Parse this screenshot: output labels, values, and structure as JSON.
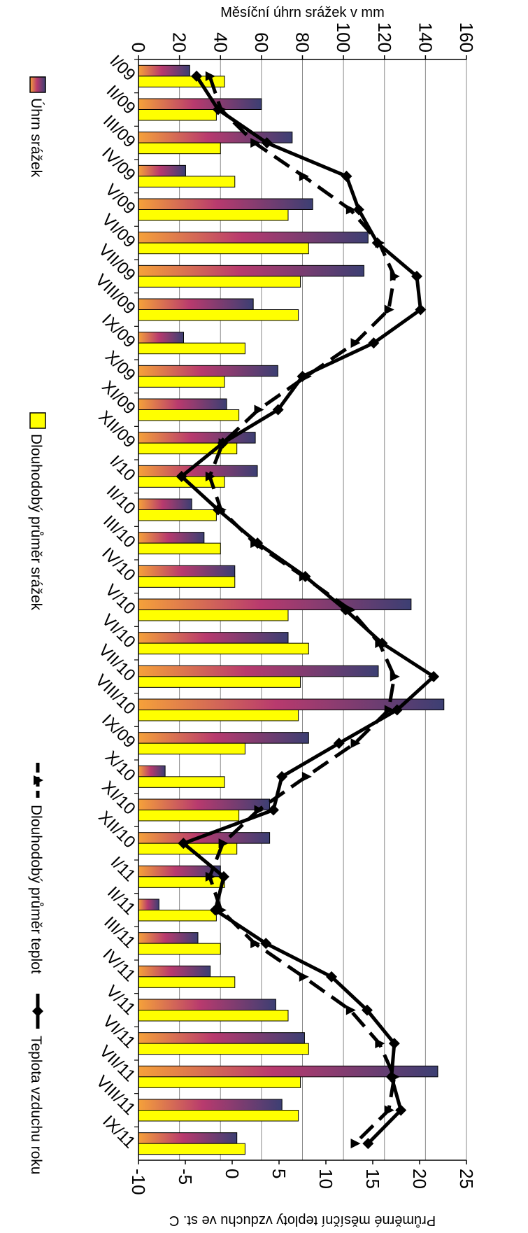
{
  "chart_data": {
    "type": "bar",
    "categories": [
      "I/09",
      "II/09",
      "III/09",
      "IV/09",
      "V/09",
      "VI/09",
      "VII/09",
      "VIII/09",
      "IX/09",
      "X/09",
      "XI/09",
      "XII/09",
      "I/10",
      "II/10",
      "III/10",
      "IV/10",
      "V/10",
      "VI/10",
      "VII/10",
      "VIII/10",
      "IX/09",
      "X/10",
      "XI/10",
      "XII/10",
      "I/11",
      "II/11",
      "III/11",
      "IV/11",
      "V/11",
      "VI/11",
      "VII/11",
      "VIII/11",
      "IX/11"
    ],
    "ylabel_left": "Měsíční úhrn srážek v mm",
    "ylabel_right": "Průměrné měsíční teploty vzduchu ve st. C",
    "ylim_left": [
      0,
      160
    ],
    "ylim_right": [
      -10,
      25
    ],
    "yticks_left": [
      "0",
      "20",
      "40",
      "60",
      "80",
      "100",
      "120",
      "140",
      "160"
    ],
    "yticks_right": [
      "-10",
      "-5",
      "0",
      "5",
      "10",
      "15",
      "20",
      "25"
    ],
    "grid": true,
    "series": [
      {
        "name": "Úhrn srážek",
        "kind": "bar",
        "axis": "left",
        "values": [
          25,
          60,
          75,
          23,
          85,
          112,
          110,
          56,
          22,
          68,
          43,
          57,
          58,
          26,
          32,
          47,
          133,
          73,
          117,
          149,
          83,
          13,
          64,
          64,
          40,
          10,
          29,
          35,
          67,
          81,
          146,
          70,
          48
        ]
      },
      {
        "name": "Dlouhodobý průměr srážek",
        "kind": "bar",
        "axis": "left",
        "values": [
          42,
          38,
          40,
          47,
          73,
          83,
          79,
          78,
          52,
          42,
          49,
          48,
          42,
          38,
          40,
          47,
          73,
          83,
          79,
          78,
          52,
          42,
          49,
          48,
          42,
          38,
          40,
          47,
          73,
          83,
          79,
          78,
          52
        ]
      },
      {
        "name": "Dlouhodobý průměr teplot",
        "kind": "line-dashed",
        "axis": "right",
        "values": [
          -2.4,
          -1.2,
          2.4,
          7.6,
          12.6,
          15.7,
          17.3,
          16.7,
          13.1,
          7.9,
          2.8,
          -1.0,
          -2.4,
          -1.2,
          2.4,
          7.6,
          12.6,
          15.7,
          17.3,
          16.7,
          13.1,
          7.9,
          2.8,
          -1.0,
          -2.4,
          -1.2,
          2.4,
          7.6,
          12.6,
          15.7,
          17.3,
          16.7,
          13.1
        ]
      },
      {
        "name": "Teplota vzduchu roku",
        "kind": "line",
        "axis": "right",
        "values": [
          -3.8,
          -1.5,
          3.7,
          12.2,
          13.5,
          15.5,
          19.7,
          20.1,
          15.1,
          7.5,
          4.9,
          -1.0,
          -5.4,
          -1.5,
          2.7,
          7.8,
          12.1,
          16.0,
          21.5,
          17.6,
          11.4,
          5.3,
          4.4,
          -5.2,
          -0.9,
          -1.8,
          3.6,
          10.6,
          14.4,
          17.3,
          17.0,
          18.0,
          14.5
        ]
      }
    ]
  }
}
